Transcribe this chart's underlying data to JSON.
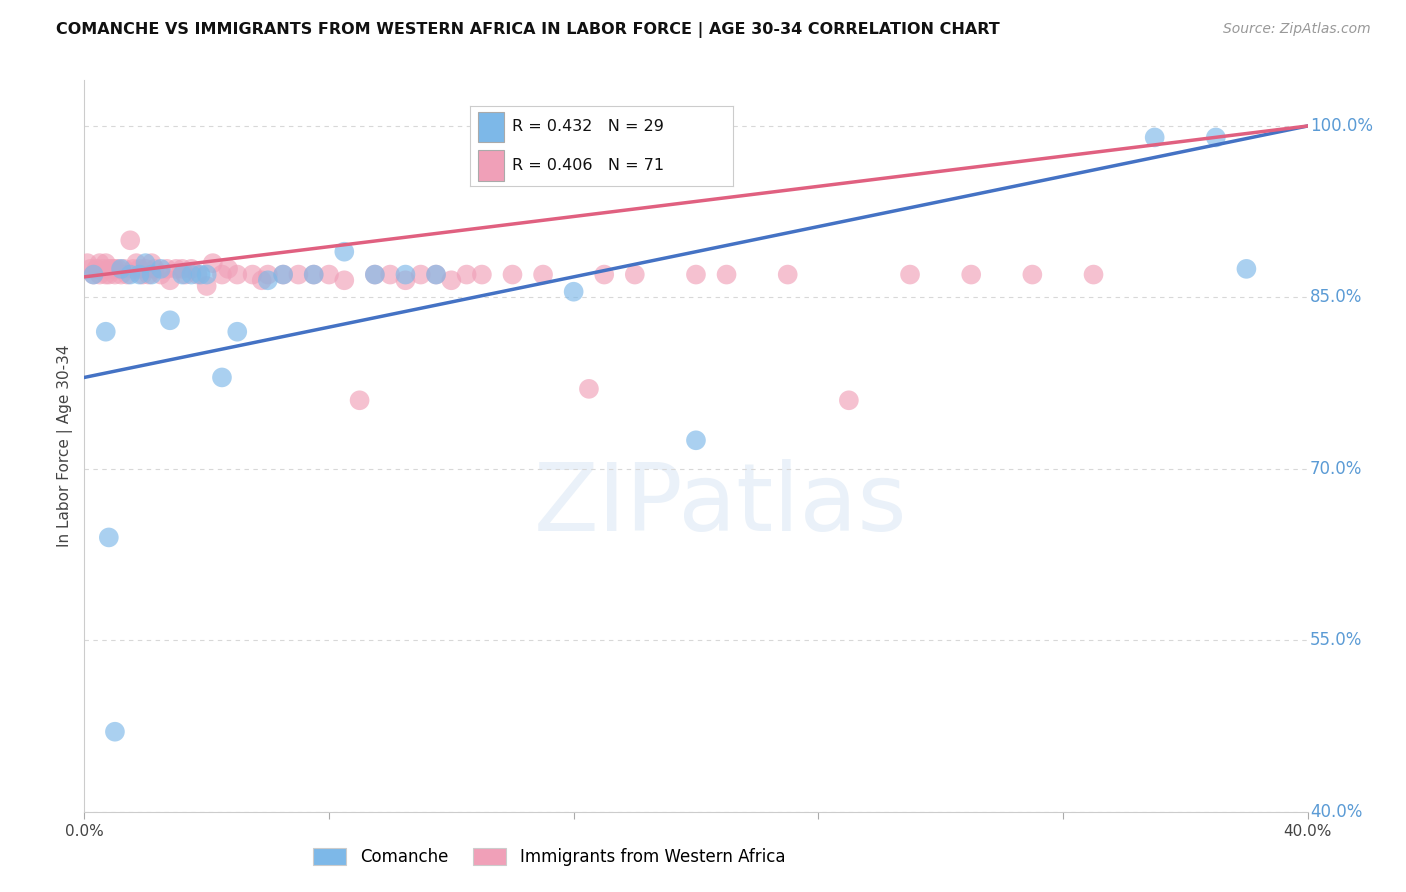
{
  "title": "COMANCHE VS IMMIGRANTS FROM WESTERN AFRICA IN LABOR FORCE | AGE 30-34 CORRELATION CHART",
  "source": "Source: ZipAtlas.com",
  "ylabel": "In Labor Force | Age 30-34",
  "xlim": [
    0.0,
    0.4
  ],
  "ylim": [
    0.4,
    1.04
  ],
  "ytick_labels": [
    "40.0%",
    "55.0%",
    "70.0%",
    "85.0%",
    "100.0%"
  ],
  "ytick_values": [
    0.4,
    0.55,
    0.7,
    0.85,
    1.0
  ],
  "xtick_values": [
    0.0,
    0.08,
    0.16,
    0.24,
    0.32,
    0.4
  ],
  "blue_color": "#7db8e8",
  "pink_color": "#f0a0b8",
  "blue_line_color": "#4472c4",
  "pink_line_color": "#e06080",
  "blue_R": 0.432,
  "blue_N": 29,
  "pink_R": 0.406,
  "pink_N": 71,
  "blue_label": "Comanche",
  "pink_label": "Immigrants from Western Africa",
  "background_color": "#ffffff",
  "grid_color": "#d8d8d8",
  "blue_x": [
    0.003,
    0.007,
    0.012,
    0.015,
    0.018,
    0.02,
    0.022,
    0.025,
    0.028,
    0.032,
    0.035,
    0.038,
    0.04,
    0.045,
    0.05,
    0.06,
    0.065,
    0.075,
    0.085,
    0.095,
    0.105,
    0.115,
    0.16,
    0.2,
    0.35,
    0.37,
    0.38,
    0.008,
    0.01
  ],
  "blue_y": [
    0.87,
    0.82,
    0.875,
    0.87,
    0.87,
    0.88,
    0.87,
    0.875,
    0.83,
    0.87,
    0.87,
    0.87,
    0.87,
    0.78,
    0.82,
    0.865,
    0.87,
    0.87,
    0.89,
    0.87,
    0.87,
    0.87,
    0.855,
    0.725,
    0.99,
    0.99,
    0.875,
    0.64,
    0.47
  ],
  "pink_x": [
    0.001,
    0.002,
    0.003,
    0.004,
    0.005,
    0.005,
    0.006,
    0.007,
    0.007,
    0.008,
    0.008,
    0.009,
    0.01,
    0.01,
    0.011,
    0.012,
    0.013,
    0.014,
    0.015,
    0.016,
    0.017,
    0.018,
    0.019,
    0.02,
    0.021,
    0.022,
    0.023,
    0.025,
    0.027,
    0.028,
    0.03,
    0.032,
    0.033,
    0.035,
    0.037,
    0.04,
    0.042,
    0.045,
    0.047,
    0.05,
    0.055,
    0.058,
    0.06,
    0.065,
    0.07,
    0.075,
    0.08,
    0.085,
    0.09,
    0.095,
    0.1,
    0.105,
    0.11,
    0.115,
    0.12,
    0.125,
    0.13,
    0.14,
    0.15,
    0.165,
    0.17,
    0.18,
    0.19,
    0.2,
    0.21,
    0.23,
    0.25,
    0.27,
    0.29,
    0.31,
    0.33
  ],
  "pink_y": [
    0.88,
    0.875,
    0.87,
    0.875,
    0.87,
    0.88,
    0.875,
    0.87,
    0.88,
    0.875,
    0.87,
    0.875,
    0.87,
    0.875,
    0.875,
    0.87,
    0.875,
    0.87,
    0.9,
    0.875,
    0.88,
    0.875,
    0.87,
    0.875,
    0.87,
    0.88,
    0.875,
    0.87,
    0.875,
    0.865,
    0.875,
    0.875,
    0.87,
    0.875,
    0.87,
    0.86,
    0.88,
    0.87,
    0.875,
    0.87,
    0.87,
    0.865,
    0.87,
    0.87,
    0.87,
    0.87,
    0.87,
    0.865,
    0.76,
    0.87,
    0.87,
    0.865,
    0.87,
    0.87,
    0.865,
    0.87,
    0.87,
    0.87,
    0.87,
    0.77,
    0.87,
    0.87,
    0.96,
    0.87,
    0.87,
    0.87,
    0.76,
    0.87,
    0.87,
    0.87,
    0.87
  ]
}
